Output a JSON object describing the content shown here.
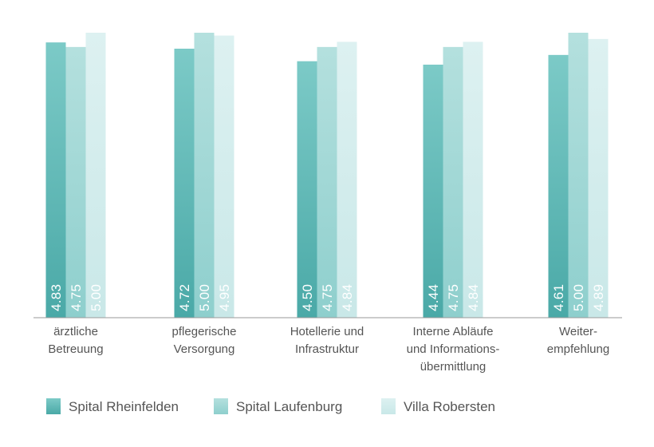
{
  "chart_data": {
    "type": "bar",
    "title": "",
    "xlabel": "",
    "ylabel": "",
    "ylim": [
      0,
      5.0
    ],
    "categories": [
      [
        "ärztliche",
        "Betreuung"
      ],
      [
        "pflegerische",
        "Versorgung"
      ],
      [
        "Hotellerie und",
        "Infrastruktur"
      ],
      [
        "Interne Abläufe",
        "und Informations-",
        "übermittlung"
      ],
      [
        "Weiter-",
        "empfehlung"
      ]
    ],
    "series": [
      {
        "name": "Spital Rheinfelden",
        "colors": [
          "#4aa9a7",
          "#7ccac7"
        ],
        "values": [
          4.83,
          4.72,
          4.5,
          4.44,
          4.61
        ],
        "labels": [
          "4.83",
          "4.72",
          "4.50",
          "4.44",
          "4.61"
        ]
      },
      {
        "name": "Spital Laufenburg",
        "colors": [
          "#8ecfcd",
          "#b4e0de"
        ],
        "values": [
          4.75,
          5.0,
          4.75,
          4.75,
          5.0
        ],
        "labels": [
          "4.75",
          "5.00",
          "4.75",
          "4.75",
          "5.00"
        ]
      },
      {
        "name": "Villa Robersten",
        "colors": [
          "#c9e8e8",
          "#ddf1f1"
        ],
        "values": [
          5.0,
          4.95,
          4.84,
          4.84,
          4.89
        ],
        "labels": [
          "5.00",
          "4.95",
          "4.84",
          "4.84",
          "4.89"
        ]
      }
    ],
    "legend_position": "bottom-left",
    "grid": false
  }
}
